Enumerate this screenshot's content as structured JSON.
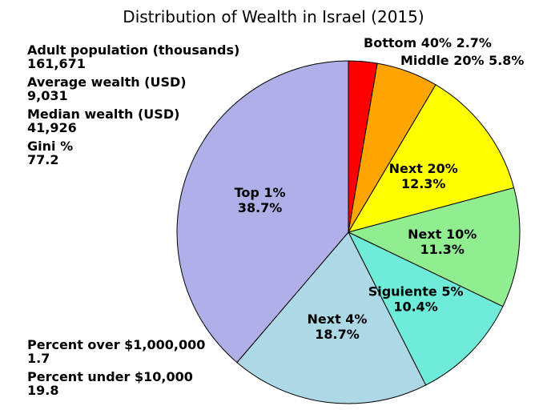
{
  "chart_data": {
    "type": "pie",
    "title": "Distribution of Wealth in Israel (2015)",
    "start_angle_deg": 0,
    "direction": "clockwise",
    "slices": [
      {
        "label": "Bottom 40%",
        "value": 2.7,
        "display": "2.7%",
        "color": "#ff0000",
        "outside": true
      },
      {
        "label": "Middle 20%",
        "value": 5.8,
        "display": "5.8%",
        "color": "#ffa500",
        "outside": true
      },
      {
        "label": "Next 20%",
        "value": 12.3,
        "display": "12.3%",
        "color": "#ffff00"
      },
      {
        "label": "Next 10%",
        "value": 11.3,
        "display": "11.3%",
        "color": "#90ee90"
      },
      {
        "label": "Siguiente 5%",
        "value": 10.4,
        "display": "10.4%",
        "color": "#6eebd9"
      },
      {
        "label": "Next 4%",
        "value": 18.7,
        "display": "18.7%",
        "color": "#add8e6"
      },
      {
        "label": "Top 1%",
        "value": 38.7,
        "display": "38.7%",
        "color": "#b0b0e8"
      }
    ]
  },
  "stats_top": [
    {
      "label": "Adult population (thousands)",
      "value": "161,671"
    },
    {
      "label": "Average wealth (USD)",
      "value": "9,031"
    },
    {
      "label": "Median wealth (USD)",
      "value": "41,926"
    },
    {
      "label": "Gini %",
      "value": "77.2"
    }
  ],
  "stats_bottom": [
    {
      "label": "Percent over $1,000,000",
      "value": "1.7"
    },
    {
      "label": "Percent under $10,000",
      "value": "19.8"
    }
  ]
}
